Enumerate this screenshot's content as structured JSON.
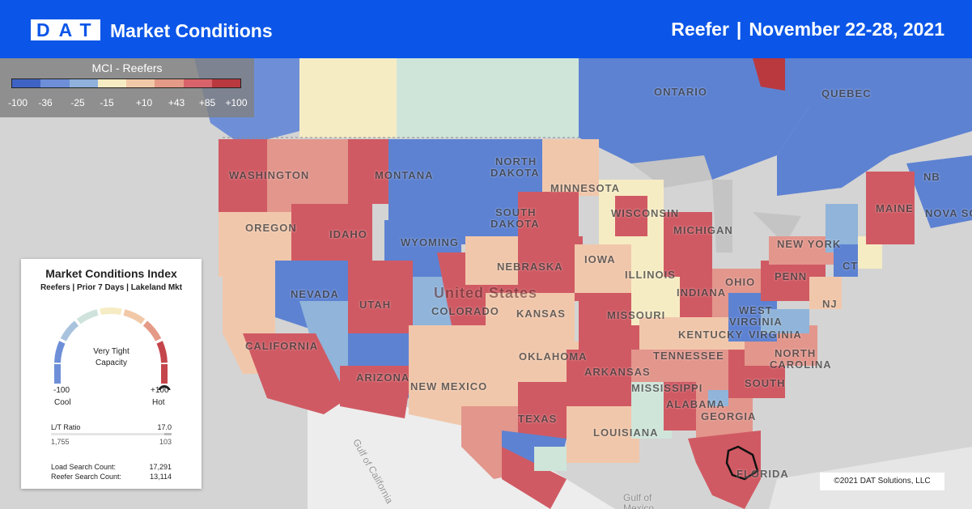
{
  "header": {
    "logo": "DAT",
    "title": "Market Conditions",
    "equipment": "Reefer",
    "separator": "|",
    "date_range": "November 22-28, 2021"
  },
  "legend": {
    "title": "MCI - Reefers",
    "colors": [
      "#3f63c4",
      "#6e8fd8",
      "#8fb1dc",
      "#f6ecc4",
      "#f2c9a8",
      "#e49a86",
      "#d8636a",
      "#b9393f"
    ],
    "ticks": [
      "-100",
      "-36",
      "-25",
      "-15",
      "+10",
      "+43",
      "+85",
      "+100"
    ]
  },
  "card": {
    "title": "Market Conditions Index",
    "subtitle": "Reefers | Prior 7 Days | Lakeland Mkt",
    "status_line1": "Very Tight",
    "status_line2": "Capacity",
    "min_value": "-100",
    "min_label": "Cool",
    "max_value": "+100",
    "max_label": "Hot",
    "lt_ratio_label": "L/T Ratio",
    "lt_ratio_value": "17.0",
    "lt_ratio_fraction": 0.06,
    "lt_left": "1,755",
    "lt_right": "103",
    "load_search_label": "Load Search Count:",
    "load_search_value": "17,291",
    "reefer_search_label": "Reefer Search Count:",
    "reefer_search_value": "13,114",
    "gauge_segments": [
      "#6e8fd8",
      "#a9c3de",
      "#cfe3dc",
      "#f6ecc4",
      "#f2c9a8",
      "#e49a86",
      "#c4464c"
    ]
  },
  "map": {
    "labels": {
      "ontario": "ONTARIO",
      "quebec": "QUEBEC",
      "nb": "NB",
      "nova_scotia": "NOVA SCO",
      "maine": "MAINE",
      "washington": "WASHINGTON",
      "montana": "MONTANA",
      "north_dakota_1": "NORTH",
      "north_dakota_2": "DAKOTA",
      "south_dakota_1": "SOUTH",
      "south_dakota_2": "DAKOTA",
      "minnesota": "MINNESOTA",
      "wisconsin": "WISCONSIN",
      "michigan": "MICHIGAN",
      "new_york": "NEW YORK",
      "oregon": "OREGON",
      "idaho": "IDAHO",
      "wyoming": "WYOMING",
      "iowa": "IOWA",
      "nebraska": "NEBRASKA",
      "illinois": "ILLINOIS",
      "indiana": "INDIANA",
      "ohio": "OHIO",
      "penn": "PENN",
      "nj": "NJ",
      "ct": "CT",
      "nevada": "NEVADA",
      "utah": "UTAH",
      "colorado": "COLORADO",
      "united_states": "United States",
      "kansas": "KANSAS",
      "missouri": "MISSOURI",
      "kentucky": "KENTUCKY",
      "west_virginia_1": "WEST",
      "west_virginia_2": "VIRGINIA",
      "virginia": "VIRGINIA",
      "california": "CALIFORNIA",
      "arizona": "ARIZONA",
      "new_mexico": "NEW MEXICO",
      "oklahoma": "OKLAHOMA",
      "tennessee": "TENNESSEE",
      "north_carolina_1": "NORTH",
      "north_carolina_2": "CAROLINA",
      "arkansas": "ARKANSAS",
      "south_carolina": "SOUTH",
      "mississippi": "MISSISSIPPI",
      "alabama": "ALABAMA",
      "georgia": "GEORGIA",
      "texas": "TEXAS",
      "louisiana": "LOUISIANA",
      "florida": "FLORIDA",
      "gulf_california_1": "Gulf of",
      "gulf_california_2": "California",
      "gulf_mexico_1": "Gulf of",
      "gulf_mexico_2": "Mexico"
    },
    "market_colors": {
      "cool": "#5d82d2",
      "cool_light": "#90b4da",
      "neutral": "#f7efc8",
      "mint": "#cfe5da",
      "warm_light": "#f1c7ab",
      "warm": "#e3968c",
      "hot": "#d05a63"
    }
  },
  "copyright": "©2021 DAT Solutions, LLC"
}
